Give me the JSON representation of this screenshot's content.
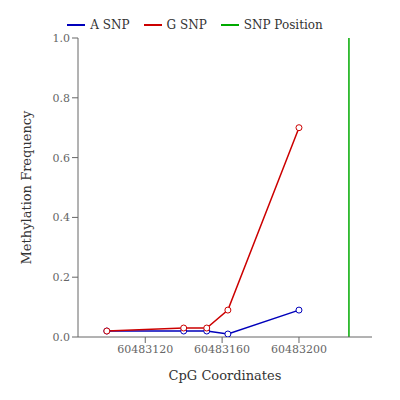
{
  "chart_data": {
    "type": "line",
    "xlabel": "CpG Coordinates",
    "ylabel": "Methylation Frequency",
    "x": [
      60483100,
      60483140,
      60483152,
      60483163,
      60483200
    ],
    "series": [
      {
        "name": "A SNP",
        "color": "#0000bb",
        "values": [
          0.02,
          0.02,
          0.02,
          0.01,
          0.09
        ],
        "marker": "circle"
      },
      {
        "name": "G SNP",
        "color": "#cc0000",
        "values": [
          0.02,
          0.03,
          0.03,
          0.09,
          0.7
        ],
        "marker": "circle"
      }
    ],
    "vline": {
      "name": "SNP Position",
      "color": "#00aa00",
      "x": 60483226
    },
    "xlim": [
      60483085,
      60483238
    ],
    "xticks": [
      60483120,
      60483160,
      60483200
    ],
    "ylim": [
      0.0,
      1.0
    ],
    "yticks": [
      {
        "value": 0.0,
        "label": "0.0"
      },
      0.2,
      0.4,
      0.6,
      0.8,
      {
        "value": 1.0,
        "label": "1.0"
      }
    ],
    "grid": false,
    "legend": "top"
  }
}
